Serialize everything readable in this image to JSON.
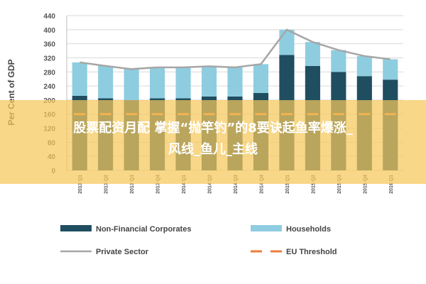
{
  "chart_data": {
    "type": "bar",
    "ylabel": "Per Cent of GDP",
    "ylim": [
      0,
      440
    ],
    "yticks": [
      0,
      40,
      80,
      120,
      160,
      200,
      240,
      280,
      320,
      360,
      400,
      440
    ],
    "categories": [
      "2013 Q1",
      "2013 Q2",
      "2013 Q3",
      "2013 Q4",
      "2014 Q1",
      "2014 Q2",
      "2014 Q3",
      "2014 Q4",
      "2015 Q1",
      "2015 Q2",
      "2015 Q3",
      "2015 Q4",
      "2016 Q1"
    ],
    "series": [
      {
        "name": "Non-Financial Corporates",
        "type": "bar",
        "color": "#1f4e60",
        "values": [
          212,
          205,
          200,
          205,
          205,
          210,
          210,
          220,
          328,
          297,
          280,
          268,
          258
        ]
      },
      {
        "name": "Households",
        "type": "bar",
        "color": "#8ecde0",
        "values": [
          95,
          92,
          88,
          88,
          88,
          86,
          83,
          82,
          72,
          68,
          62,
          57,
          58
        ]
      },
      {
        "name": "Private Sector",
        "type": "line",
        "color": "#a6a6a6",
        "values": [
          307,
          297,
          288,
          293,
          293,
          296,
          293,
          302,
          400,
          365,
          342,
          325,
          316
        ]
      },
      {
        "name": "EU Threshold",
        "type": "line",
        "color": "#f07d3a",
        "dash": true,
        "values": [
          160,
          160,
          160,
          160,
          160,
          160,
          160,
          160,
          160,
          160,
          160,
          160,
          160
        ]
      }
    ],
    "grid": true,
    "legend": "bottom"
  },
  "overlay": {
    "line1": "股票配资月配 掌握“抛竿钓”的8要诀起鱼率爆涨_",
    "line2": "风线_鱼儿_主线"
  }
}
